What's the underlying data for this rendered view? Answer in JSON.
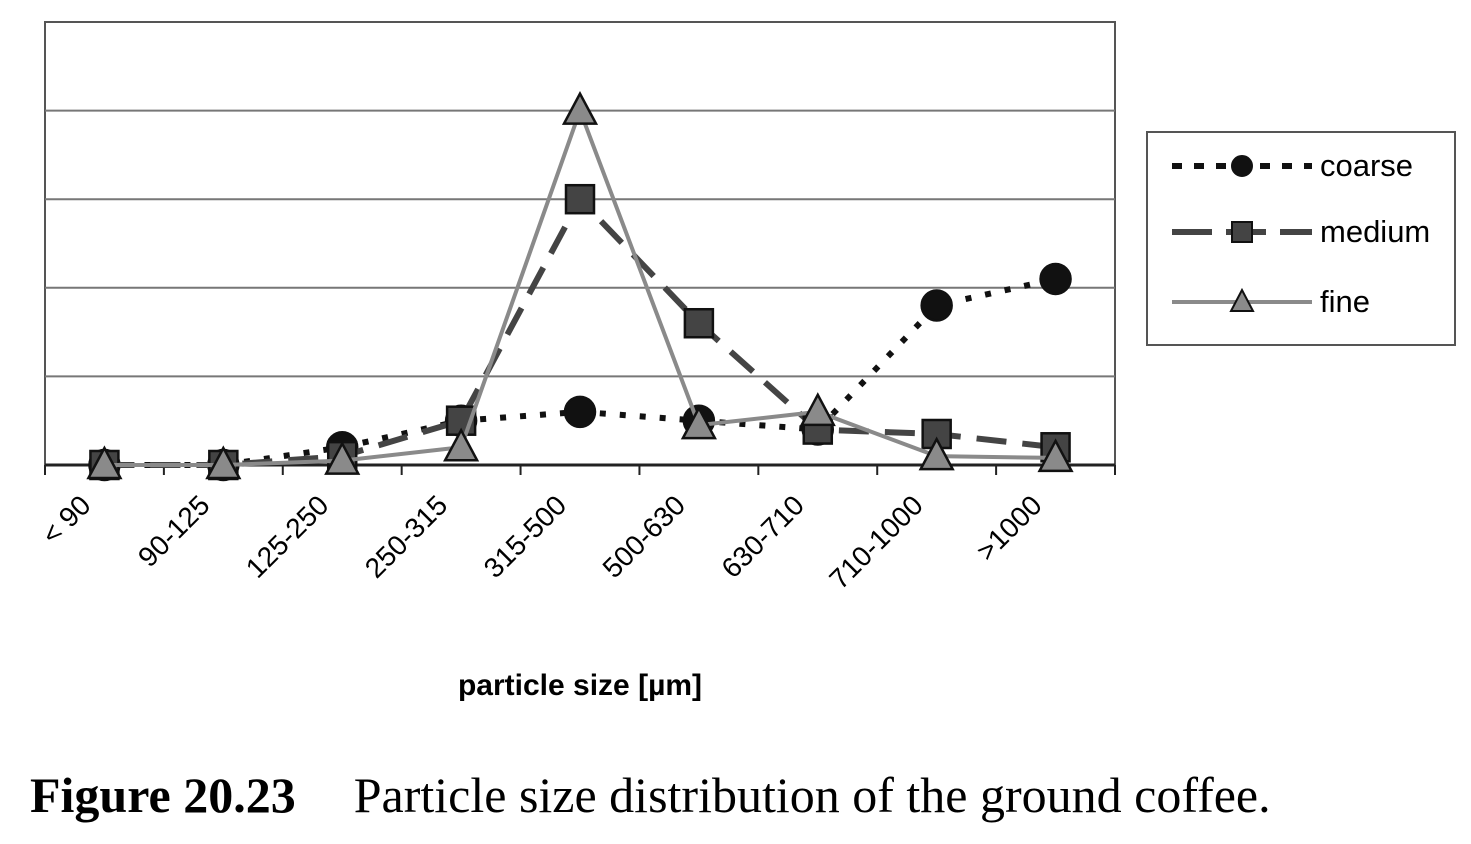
{
  "chart_data": {
    "type": "line",
    "categories": [
      "< 90",
      "90-125",
      "125-250",
      "250-315",
      "315-500",
      "500-630",
      "630-710",
      "710-1000",
      ">1000"
    ],
    "series": [
      {
        "name": "coarse",
        "values": [
          0.0,
          0.0,
          0.2,
          0.5,
          0.6,
          0.5,
          0.4,
          1.8,
          2.1
        ],
        "color": "#111111",
        "line": "dotted",
        "marker": "circle"
      },
      {
        "name": "medium",
        "values": [
          0.0,
          0.0,
          0.1,
          0.5,
          3.0,
          1.6,
          0.4,
          0.35,
          0.2
        ],
        "color": "#444444",
        "line": "dashed",
        "marker": "square"
      },
      {
        "name": "fine",
        "values": [
          0.0,
          0.0,
          0.05,
          0.2,
          4.0,
          0.45,
          0.6,
          0.1,
          0.08
        ],
        "color": "#8a8a8a",
        "line": "solid",
        "marker": "triangle"
      }
    ],
    "xlabel": "particle size [µm]",
    "ylabel": "",
    "ylim": [
      0,
      5
    ],
    "grid": true,
    "legend": "right"
  },
  "caption": {
    "label": "Figure 20.23",
    "text": "Particle size distribution of the ground coffee."
  }
}
